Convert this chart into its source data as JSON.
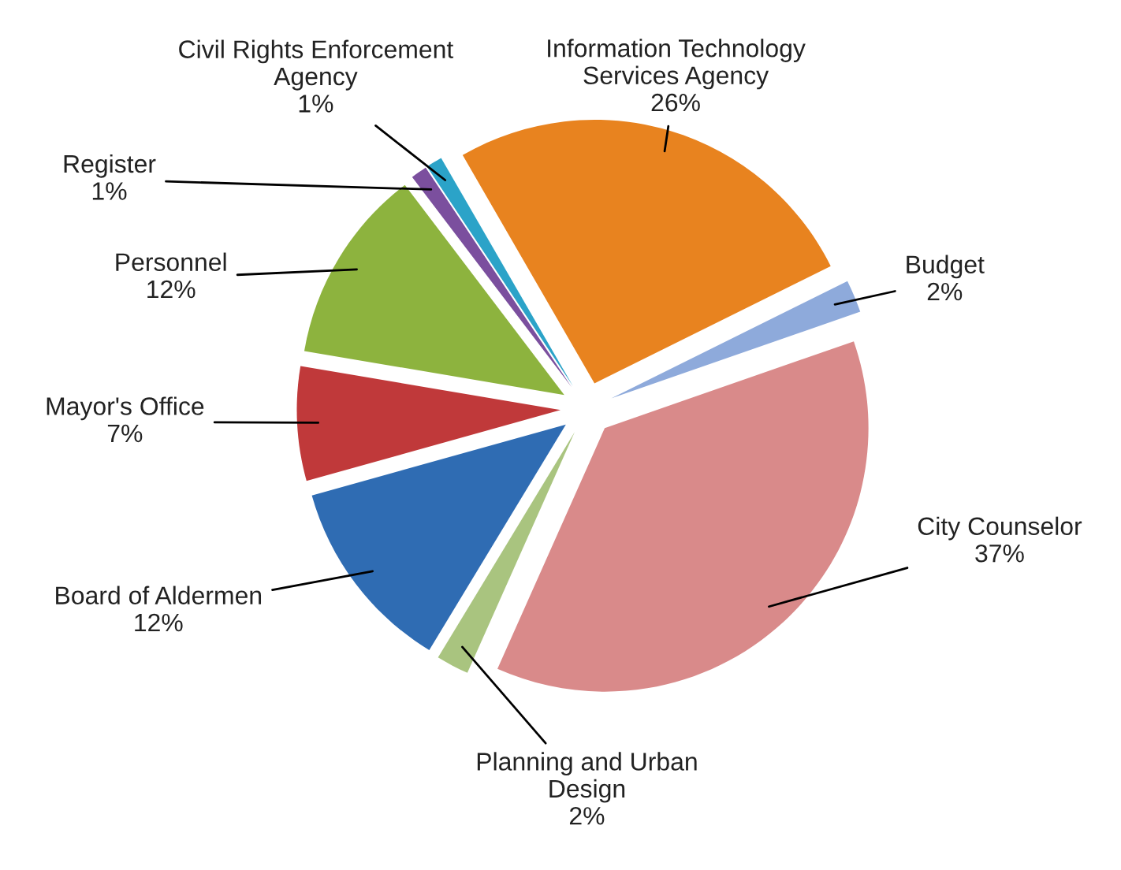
{
  "chart_data": {
    "type": "pie",
    "categories": [
      "Information Technology\nServices Agency",
      "Budget",
      "City Counselor",
      "Planning and Urban\nDesign",
      "Board of Aldermen",
      "Mayor's Office",
      "Personnel",
      "Register",
      "Civil Rights Enforcement\nAgency"
    ],
    "values": [
      26,
      2,
      37,
      2,
      12,
      7,
      12,
      1,
      1
    ],
    "value_labels": [
      "26%",
      "2%",
      "37%",
      "2%",
      "12%",
      "7%",
      "12%",
      "1%",
      "1%"
    ],
    "colors": [
      "#e8831f",
      "#8eaadb",
      "#d98a8a",
      "#a9c47f",
      "#2f6cb3",
      "#c0393a",
      "#8db33e",
      "#7b4f9e",
      "#2ba3c8"
    ],
    "legend": false
  }
}
